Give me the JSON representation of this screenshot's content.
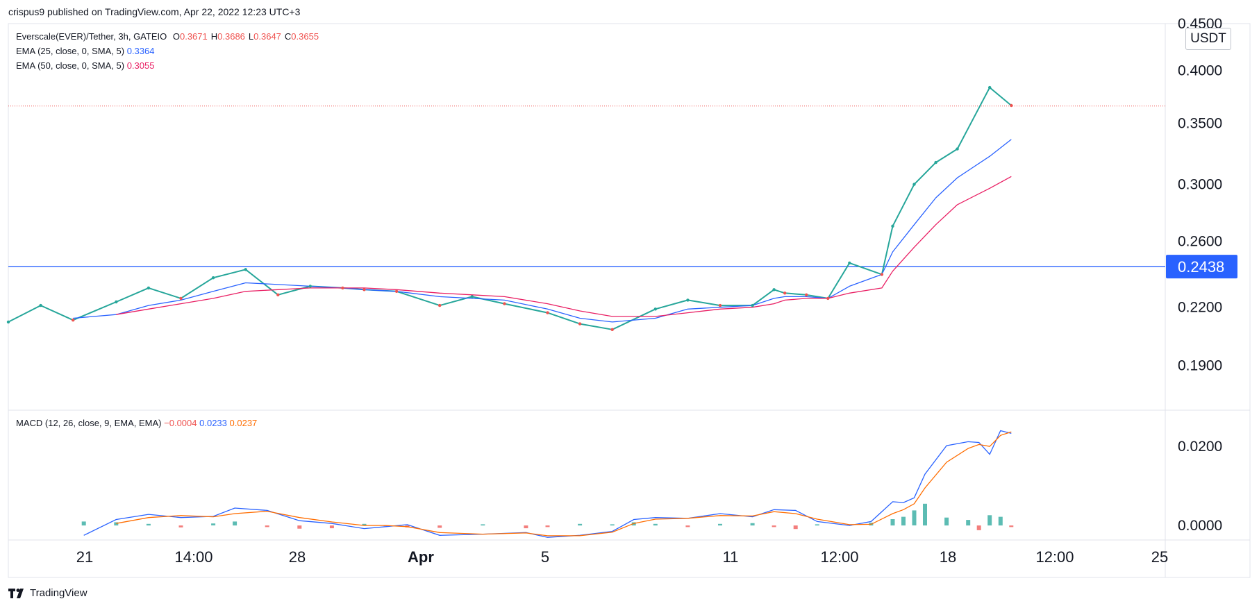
{
  "header": {
    "published": "crispus9 published on TradingView.com, Apr 22, 2022 12:23 UTC+3"
  },
  "legend": {
    "symbol": "Everscale(EVER)/Tether, 3h, GATEIO",
    "ohlc": [
      {
        "k": "O",
        "v": "0.3671"
      },
      {
        "k": "H",
        "v": "0.3686"
      },
      {
        "k": "L",
        "v": "0.3647"
      },
      {
        "k": "C",
        "v": "0.3655"
      }
    ],
    "ema25_label": "EMA (25, close, 0, SMA, 5)",
    "ema25_value": "0.3364",
    "ema50_label": "EMA (50, close, 0, SMA, 5)",
    "ema50_value": "0.3055",
    "macd_label": "MACD (12, 26, close, 9, EMA, EMA)",
    "macd_hist": "−0.0004",
    "macd_line": "0.0233",
    "macd_signal": "0.0237"
  },
  "price_axis": {
    "unit": "USDT",
    "ticks": [
      "0.4500",
      "0.4000",
      "0.3500",
      "0.3000",
      "0.2600",
      "0.2200",
      "0.1900"
    ],
    "current_label": "0.2438"
  },
  "macd_axis": {
    "ticks": [
      "0.0200",
      "0.0000"
    ]
  },
  "time_axis": {
    "ticks": [
      "21",
      "14:00",
      "28",
      "Apr",
      "5",
      "11",
      "12:00",
      "18",
      "12:00",
      "25"
    ]
  },
  "branding": {
    "name": "TradingView"
  },
  "chart_data": [
    {
      "type": "line",
      "scale": "log",
      "ylim": [
        0.17,
        0.45
      ],
      "xlim": [
        0,
        1
      ],
      "horizontal_line": 0.2438,
      "last_price_line": 0.3655,
      "x": [
        0.0,
        0.03,
        0.06,
        0.1,
        0.13,
        0.16,
        0.19,
        0.22,
        0.25,
        0.28,
        0.31,
        0.33,
        0.36,
        0.4,
        0.43,
        0.46,
        0.5,
        0.53,
        0.56,
        0.6,
        0.63,
        0.66,
        0.69,
        0.71,
        0.72,
        0.74,
        0.76,
        0.78,
        0.81,
        0.82,
        0.84,
        0.86,
        0.88,
        0.91,
        0.93
      ],
      "series": [
        {
          "name": "Everscale(EVER)/Tether",
          "values": [
            0.212,
            0.221,
            0.213,
            0.223,
            0.231,
            0.225,
            0.237,
            0.242,
            0.227,
            0.232,
            0.231,
            0.23,
            0.229,
            0.221,
            0.226,
            0.222,
            0.217,
            0.211,
            0.208,
            0.219,
            0.224,
            0.221,
            0.221,
            0.23,
            0.228,
            0.227,
            0.225,
            0.246,
            0.239,
            0.27,
            0.3,
            0.317,
            0.328,
            0.383,
            0.366
          ]
        },
        {
          "name": "EMA (25, close, 0, SMA, 5)",
          "values": [
            null,
            null,
            0.214,
            0.216,
            0.221,
            0.224,
            0.229,
            0.234,
            0.233,
            0.232,
            0.231,
            0.23,
            0.229,
            0.226,
            0.225,
            0.224,
            0.219,
            0.214,
            0.212,
            0.214,
            0.219,
            0.22,
            0.221,
            0.225,
            0.226,
            0.226,
            0.225,
            0.232,
            0.239,
            0.253,
            0.271,
            0.29,
            0.305,
            0.322,
            0.336
          ]
        },
        {
          "name": "EMA (50, close, 0, SMA, 5)",
          "values": [
            null,
            null,
            null,
            0.216,
            0.219,
            0.222,
            0.225,
            0.229,
            0.23,
            0.231,
            0.231,
            0.231,
            0.23,
            0.228,
            0.227,
            0.226,
            0.222,
            0.218,
            0.215,
            0.215,
            0.217,
            0.219,
            0.22,
            0.222,
            0.224,
            0.225,
            0.225,
            0.228,
            0.231,
            0.241,
            0.256,
            0.271,
            0.285,
            0.297,
            0.306
          ]
        }
      ]
    },
    {
      "type": "line",
      "ylim": [
        -0.0035,
        0.029
      ],
      "x": [
        0.07,
        0.1,
        0.13,
        0.16,
        0.19,
        0.21,
        0.24,
        0.27,
        0.3,
        0.33,
        0.35,
        0.37,
        0.4,
        0.44,
        0.48,
        0.5,
        0.53,
        0.56,
        0.58,
        0.6,
        0.63,
        0.66,
        0.69,
        0.71,
        0.73,
        0.75,
        0.78,
        0.8,
        0.82,
        0.83,
        0.84,
        0.85,
        0.87,
        0.89,
        0.9,
        0.91,
        0.92,
        0.93
      ],
      "series": [
        {
          "name": "MACD",
          "values": [
            -0.0025,
            0.0015,
            0.0028,
            0.002,
            0.0023,
            0.0044,
            0.0038,
            0.0012,
            0.0005,
            -0.0008,
            -0.0003,
            0.0002,
            -0.0025,
            -0.0022,
            -0.0018,
            -0.003,
            -0.0025,
            -0.0015,
            0.0015,
            0.002,
            0.0018,
            0.003,
            0.0022,
            0.004,
            0.0038,
            0.001,
            0.0,
            0.001,
            0.006,
            0.0058,
            0.007,
            0.013,
            0.0202,
            0.0212,
            0.021,
            0.018,
            0.024,
            0.0233
          ]
        },
        {
          "name": "Signal",
          "values": [
            null,
            0.0005,
            0.002,
            0.0025,
            0.0022,
            0.003,
            0.0036,
            0.002,
            0.0009,
            0.0,
            0.0,
            -0.0003,
            -0.0018,
            -0.0022,
            -0.0019,
            -0.0026,
            -0.0026,
            -0.0017,
            0.0005,
            0.0016,
            0.0018,
            0.0025,
            0.0024,
            0.0035,
            0.003,
            0.0016,
            0.0002,
            0.0003,
            0.003,
            0.004,
            0.0055,
            0.0095,
            0.016,
            0.0195,
            0.0205,
            0.02,
            0.0228,
            0.0237
          ]
        },
        {
          "name": "Histogram",
          "values": [
            0.001,
            0.0008,
            0.0004,
            -0.0005,
            0.0005,
            0.001,
            -0.0004,
            -0.0008,
            -0.0007,
            0.0004,
            -0.0002,
            -0.0005,
            -0.0006,
            0.0003,
            -0.0007,
            -0.0004,
            0.0004,
            0.0003,
            0.0008,
            0.0004,
            -0.0004,
            0.0004,
            0.0006,
            -0.0004,
            -0.0009,
            0.0003,
            0.0001,
            0.0007,
            0.0016,
            0.0022,
            0.0038,
            0.0055,
            0.002,
            0.0014,
            -0.0012,
            0.0026,
            0.0022,
            -0.0004
          ]
        }
      ]
    }
  ]
}
